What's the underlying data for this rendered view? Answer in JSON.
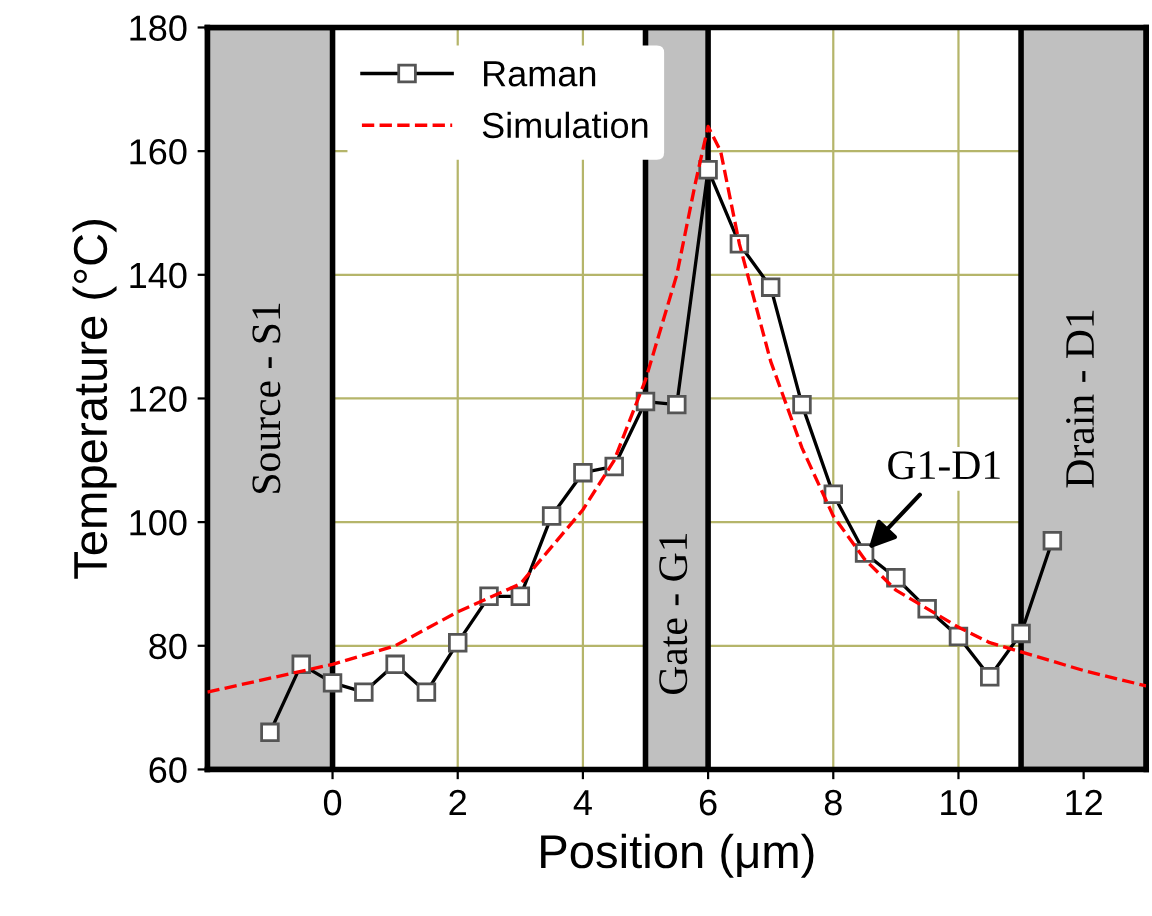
{
  "chart_data": {
    "type": "line",
    "xlabel": "Position (μm)",
    "ylabel": "Temperature (°C)",
    "xlim": [
      -2,
      13
    ],
    "ylim": [
      60,
      180
    ],
    "xticks": [
      0,
      2,
      4,
      6,
      8,
      10,
      12
    ],
    "yticks": [
      60,
      80,
      100,
      120,
      140,
      160,
      180
    ],
    "grid": true,
    "legend": "top left",
    "series": [
      {
        "name": "Raman",
        "color": "#000000",
        "marker": "square",
        "line_style": "solid",
        "x": [
          -1,
          -0.5,
          0,
          0.5,
          1,
          1.5,
          2,
          2.5,
          3,
          3.5,
          4,
          4.5,
          5,
          5.5,
          6,
          6.5,
          7,
          7.5,
          8,
          8.5,
          9,
          9.5,
          10,
          10.5,
          11,
          11.5
        ],
        "values": [
          66,
          77,
          74,
          72.5,
          77,
          72.5,
          80.5,
          88,
          88,
          101,
          108,
          109,
          119.5,
          119,
          157,
          145,
          138,
          119,
          104.5,
          95,
          91,
          86,
          81.5,
          75,
          82,
          97
        ]
      },
      {
        "name": "Simulation",
        "color": "#ff0000",
        "marker": "none",
        "line_style": "dashed",
        "x": [
          -2,
          0,
          1,
          2,
          3,
          4,
          4.5,
          5,
          5.5,
          5.8,
          6,
          6.2,
          6.5,
          7,
          7.5,
          8,
          8.5,
          9,
          10,
          10.5,
          11,
          12,
          13
        ],
        "values": [
          72.5,
          77,
          80,
          85.5,
          90,
          102,
          110,
          123,
          140,
          155,
          164,
          160,
          145,
          126,
          112,
          101,
          94,
          89,
          83,
          80.5,
          79,
          76,
          73.5
        ]
      }
    ],
    "bands": [
      {
        "axis": "x",
        "from": -2,
        "to": 0,
        "label": "Source - S1",
        "color": "#c0c0c0"
      },
      {
        "axis": "x",
        "from": 5,
        "to": 6,
        "label": "Gate - G1",
        "color": "#c0c0c0"
      },
      {
        "axis": "x",
        "from": 11,
        "to": 13,
        "label": "Drain - D1",
        "color": "#c0c0c0"
      }
    ],
    "annotations": [
      {
        "text": "G1-D1",
        "x": 8.5,
        "y": 95
      }
    ]
  }
}
